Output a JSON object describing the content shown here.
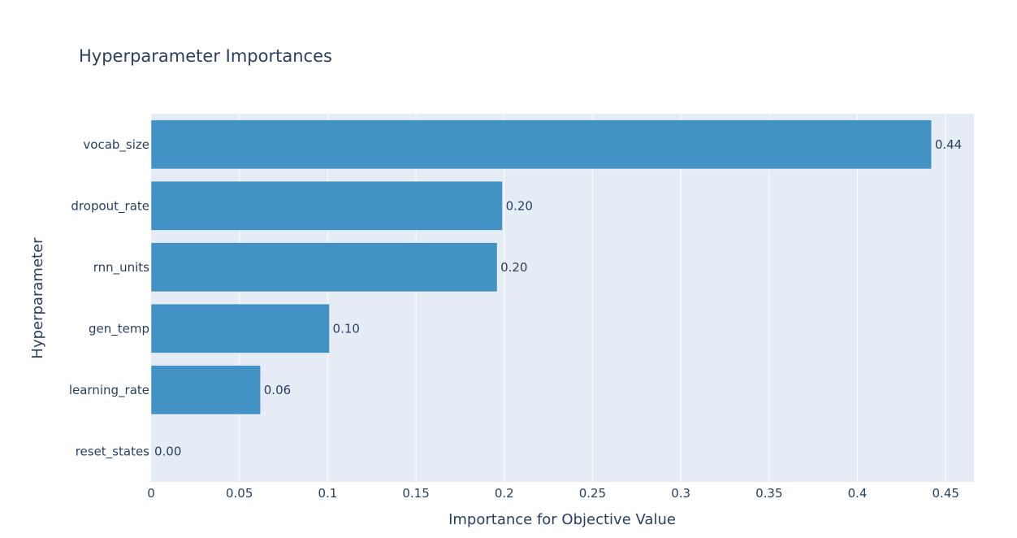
{
  "chart_data": {
    "type": "bar",
    "orientation": "horizontal",
    "title": "Hyperparameter Importances",
    "xlabel": "Importance for Objective Value",
    "ylabel": "Hyperparameter",
    "categories": [
      "vocab_size",
      "dropout_rate",
      "rnn_units",
      "gen_temp",
      "learning_rate",
      "reset_states"
    ],
    "values": [
      0.442,
      0.199,
      0.196,
      0.101,
      0.062,
      0.0
    ],
    "value_labels": [
      "0.44",
      "0.20",
      "0.20",
      "0.10",
      "0.06",
      "0.00"
    ],
    "xlim": [
      0,
      0.466
    ],
    "xticks": [
      0,
      0.05,
      0.1,
      0.15,
      0.2,
      0.25,
      0.3,
      0.35,
      0.4,
      0.45
    ],
    "xtick_labels": [
      "0",
      "0.05",
      "0.1",
      "0.15",
      "0.2",
      "0.25",
      "0.3",
      "0.35",
      "0.4",
      "0.45"
    ],
    "grid": true,
    "legend": "none",
    "colors": {
      "bar": "#4292c6",
      "bar_edge": "#ffffff",
      "plot_bg": "#e5ecf6",
      "grid": "#ffffff",
      "text": "#2a3f5f"
    }
  }
}
